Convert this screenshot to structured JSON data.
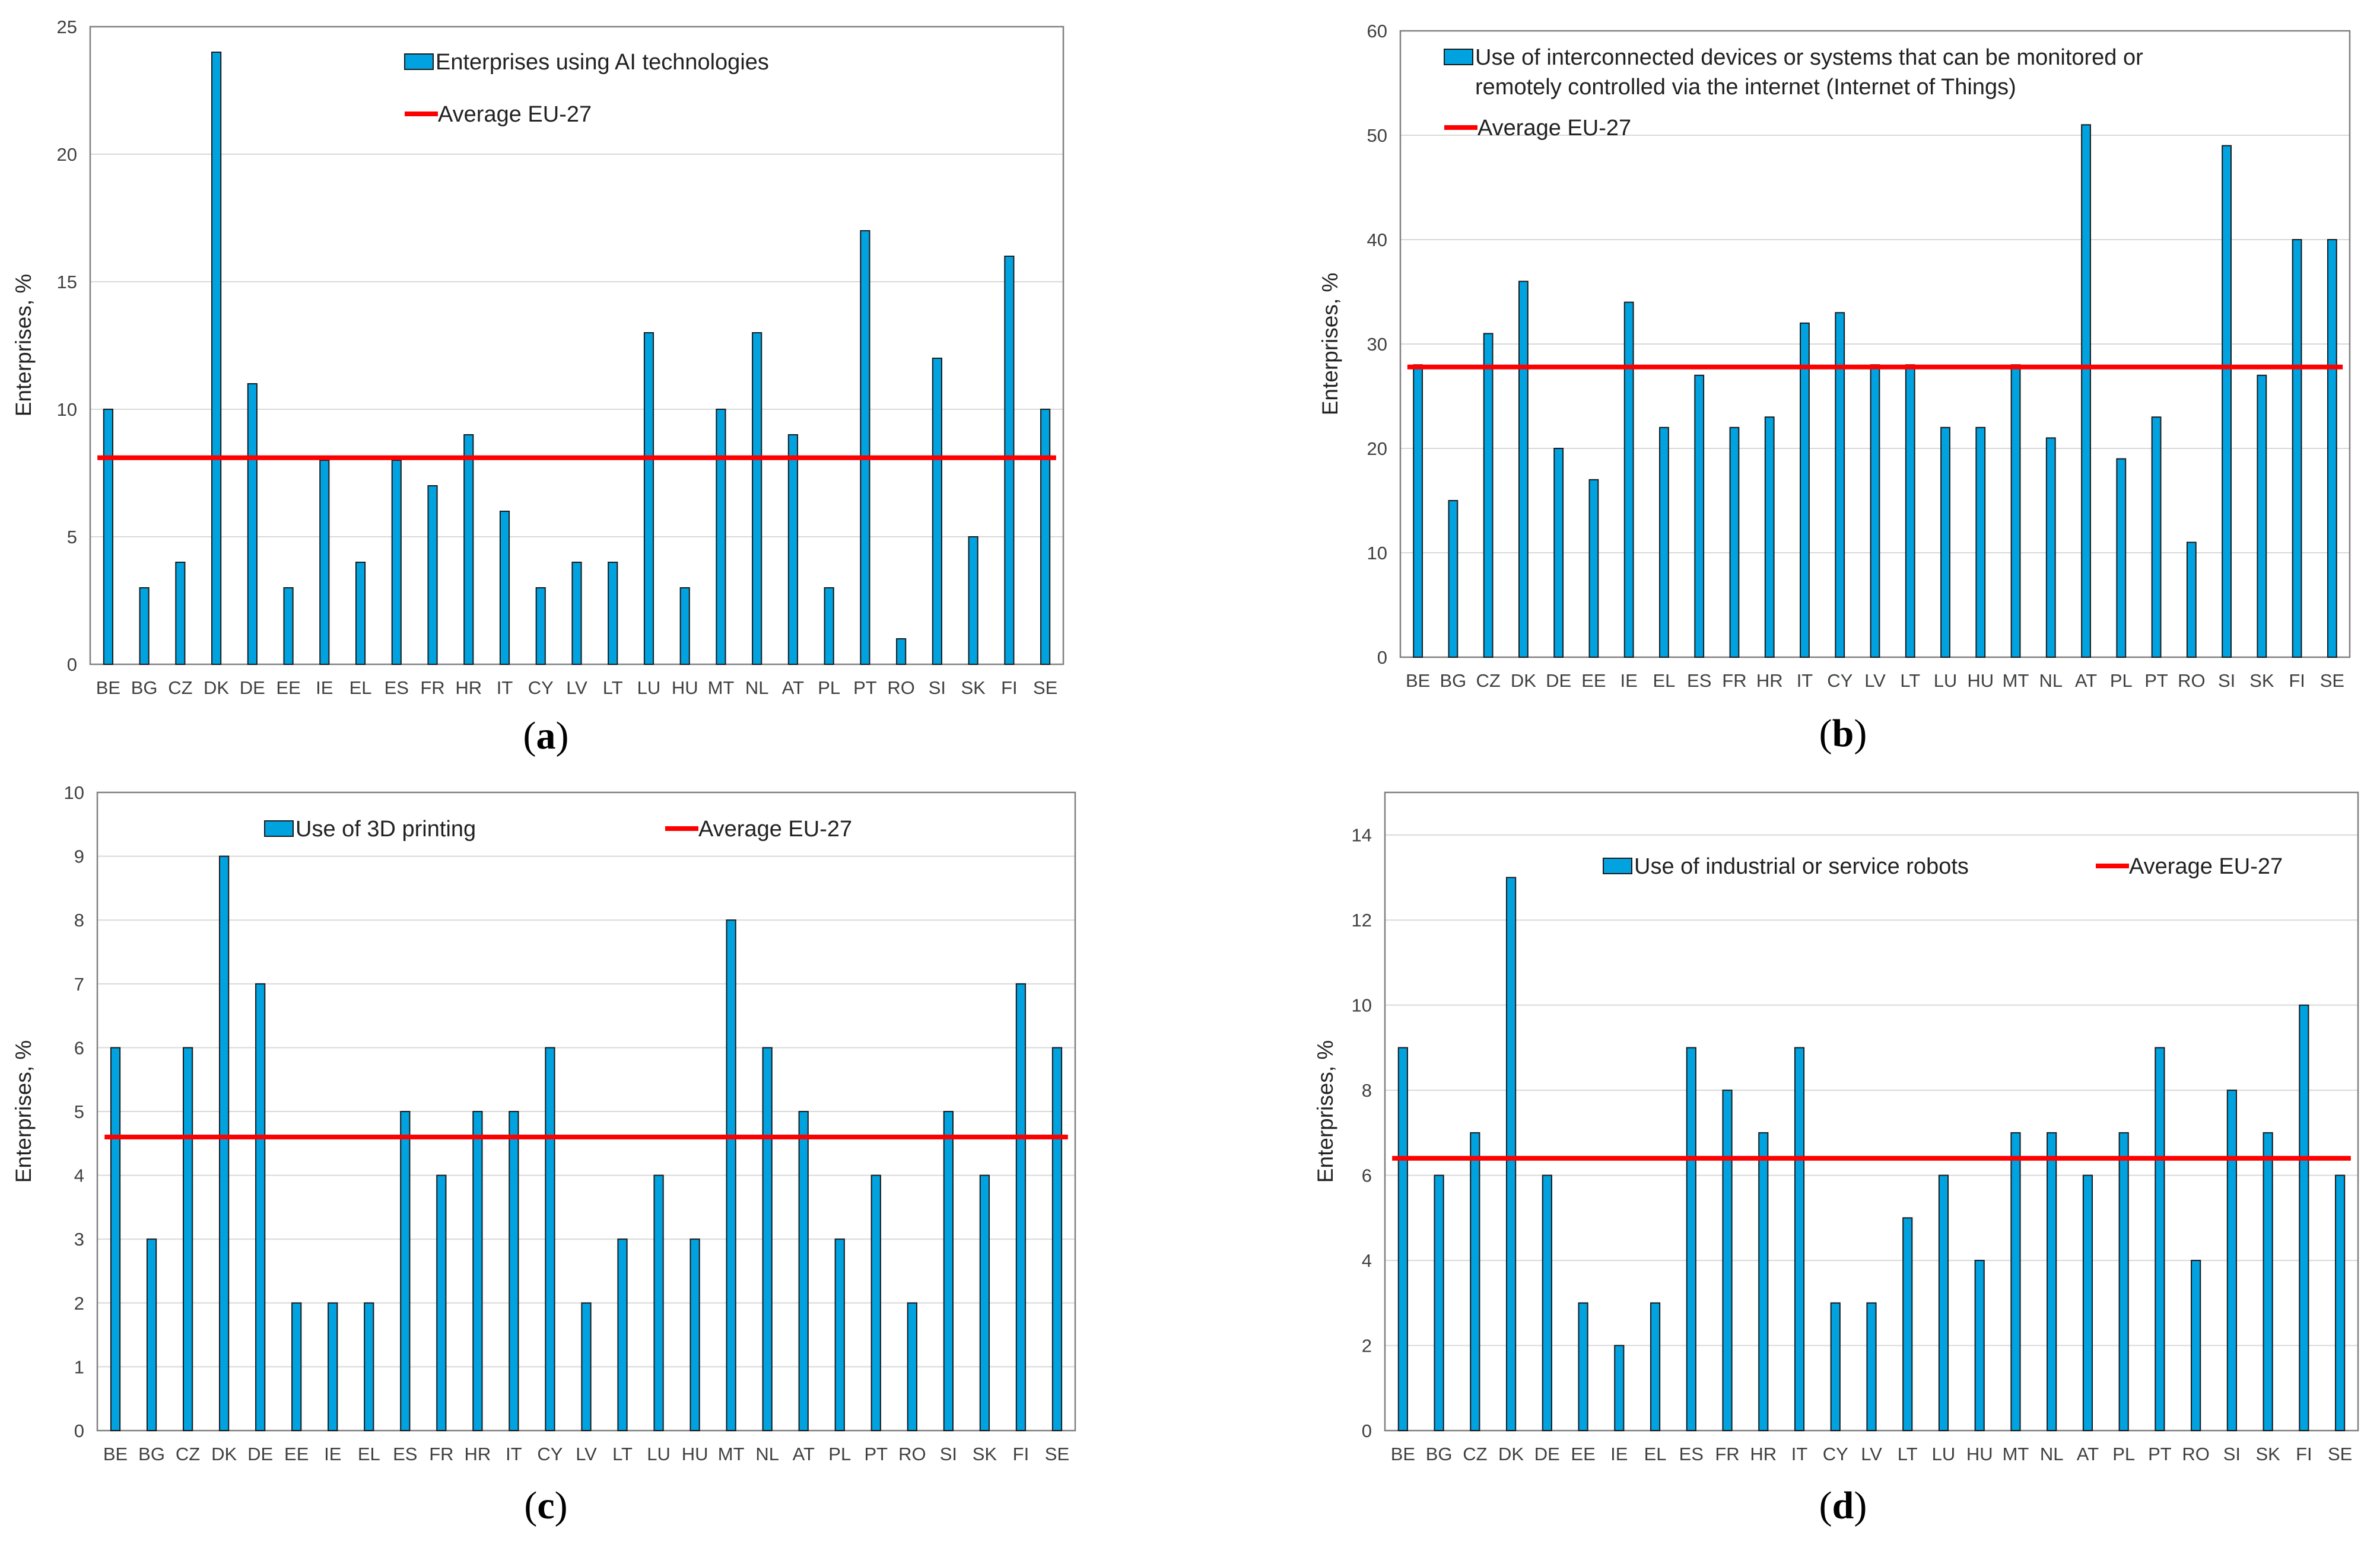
{
  "colors": {
    "bar": "#00a2e0",
    "bar_edge": "#1a1a1a",
    "average": "#ff0000",
    "grid": "#d9d9d9",
    "axis": "#808080"
  },
  "chart_data": [
    {
      "type": "bar",
      "panel": "(a)",
      "panel_letter": "a",
      "ylabel": "Enterprises, %",
      "categories": [
        "BE",
        "BG",
        "CZ",
        "DK",
        "DE",
        "EE",
        "IE",
        "EL",
        "ES",
        "FR",
        "HR",
        "IT",
        "CY",
        "LV",
        "LT",
        "LU",
        "HU",
        "MT",
        "NL",
        "AT",
        "PL",
        "PT",
        "RO",
        "SI",
        "SK",
        "FI",
        "SE"
      ],
      "series": [
        {
          "name": "Enterprises using AI technologies",
          "values": [
            10,
            3,
            4,
            24,
            11,
            3,
            8,
            4,
            8,
            7,
            9,
            6,
            3,
            4,
            4,
            13,
            3,
            10,
            13,
            9,
            3,
            17,
            1,
            12,
            5,
            16,
            10
          ]
        }
      ],
      "average": {
        "name": "Average EU-27",
        "value": 8.1
      },
      "ylim": [
        0,
        25
      ],
      "yticks": [
        0,
        5,
        10,
        15,
        20,
        25
      ],
      "grid": true,
      "legend": "top-center"
    },
    {
      "type": "bar",
      "panel": "(b)",
      "panel_letter": "b",
      "ylabel": "Enterprises, %",
      "categories": [
        "BE",
        "BG",
        "CZ",
        "DK",
        "DE",
        "EE",
        "IE",
        "EL",
        "ES",
        "FR",
        "HR",
        "IT",
        "CY",
        "LV",
        "LT",
        "LU",
        "HU",
        "MT",
        "NL",
        "AT",
        "PL",
        "PT",
        "RO",
        "SI",
        "SK",
        "FI",
        "SE"
      ],
      "series": [
        {
          "name": "Use of interconnected devices or systems that can be monitored or remotely controlled via the internet (Internet of Things)",
          "name_lines": [
            "Use of interconnected devices or systems that can be monitored or",
            "remotely controlled via the internet (Internet of Things)"
          ],
          "values": [
            28,
            15,
            31,
            36,
            20,
            17,
            34,
            22,
            27,
            22,
            23,
            32,
            33,
            28,
            28,
            22,
            22,
            28,
            21,
            51,
            19,
            23,
            11,
            49,
            27,
            40,
            40
          ]
        }
      ],
      "average": {
        "name": "Average EU-27",
        "value": 27.8
      },
      "ylim": [
        0,
        60
      ],
      "yticks": [
        0,
        10,
        20,
        30,
        40,
        50,
        60
      ],
      "grid": true,
      "legend": "top-left"
    },
    {
      "type": "bar",
      "panel": "(c)",
      "panel_letter": "c",
      "ylabel": "Enterprises, %",
      "categories": [
        "BE",
        "BG",
        "CZ",
        "DK",
        "DE",
        "EE",
        "IE",
        "EL",
        "ES",
        "FR",
        "HR",
        "IT",
        "CY",
        "LV",
        "LT",
        "LU",
        "HU",
        "MT",
        "NL",
        "AT",
        "PL",
        "PT",
        "RO",
        "SI",
        "SK",
        "FI",
        "SE"
      ],
      "series": [
        {
          "name": "Use of 3D printing",
          "values": [
            6,
            3,
            6,
            9,
            7,
            2,
            2,
            2,
            5,
            4,
            5,
            5,
            6,
            2,
            3,
            4,
            3,
            8,
            6,
            5,
            3,
            4,
            2,
            5,
            4,
            7,
            6
          ]
        }
      ],
      "average": {
        "name": "Average EU-27",
        "value": 4.6
      },
      "ylim": [
        0,
        10
      ],
      "yticks": [
        0,
        1,
        2,
        3,
        4,
        5,
        6,
        7,
        8,
        9,
        10
      ],
      "grid": true,
      "legend": "top-center"
    },
    {
      "type": "bar",
      "panel": "(d)",
      "panel_letter": "d",
      "ylabel": "Enterprises, %",
      "categories": [
        "BE",
        "BG",
        "CZ",
        "DK",
        "DE",
        "EE",
        "IE",
        "EL",
        "ES",
        "FR",
        "HR",
        "IT",
        "CY",
        "LV",
        "LT",
        "LU",
        "HU",
        "MT",
        "NL",
        "AT",
        "PL",
        "PT",
        "RO",
        "SI",
        "SK",
        "FI",
        "SE"
      ],
      "series": [
        {
          "name": "Use of industrial or service robots",
          "values": [
            9,
            6,
            7,
            13,
            6,
            3,
            2,
            3,
            9,
            8,
            7,
            9,
            3,
            3,
            5,
            6,
            4,
            7,
            7,
            6,
            7,
            9,
            4,
            8,
            7,
            10,
            6
          ]
        }
      ],
      "average": {
        "name": "Average EU-27",
        "value": 6.4
      },
      "ylim": [
        0,
        15
      ],
      "yticks": [
        0,
        2,
        4,
        6,
        8,
        10,
        12,
        14
      ],
      "grid": true,
      "legend": "top-center"
    }
  ]
}
